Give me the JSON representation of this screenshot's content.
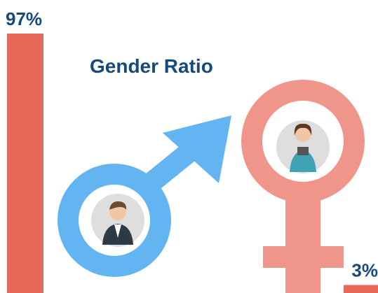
{
  "chart_data": {
    "type": "bar",
    "title": "Gender Ratio",
    "categories": [
      null,
      null
    ],
    "values": [
      97,
      3
    ],
    "value_labels": [
      "97%",
      "3%"
    ],
    "color": "#e8685a",
    "ylim": [
      0,
      100
    ]
  }
}
